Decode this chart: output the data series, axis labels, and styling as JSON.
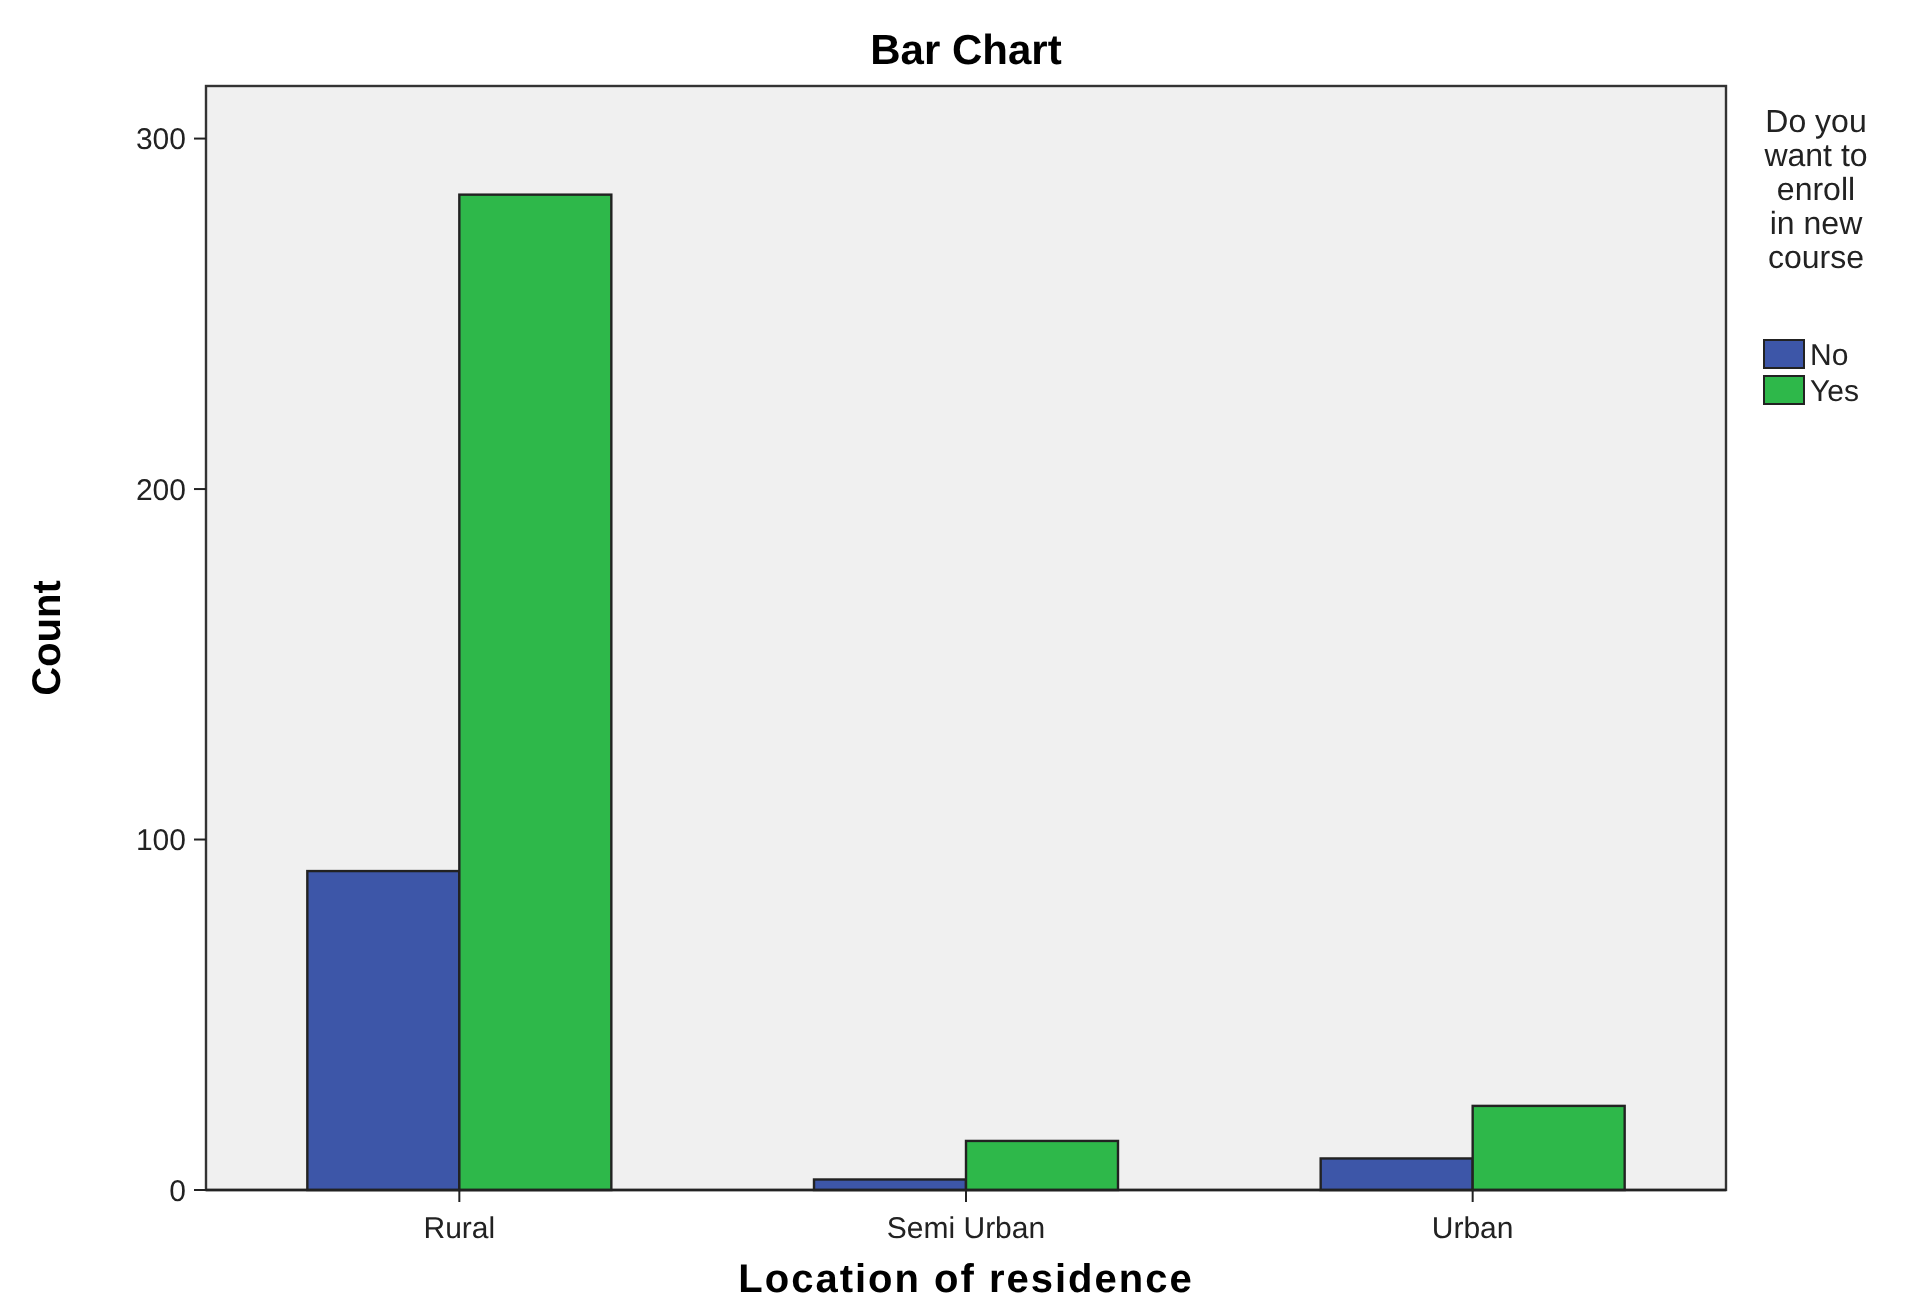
{
  "chart_data": {
    "type": "bar",
    "title": "Bar Chart",
    "xlabel": "Location of residence",
    "ylabel": "Count",
    "legend_title": "Do you want to enroll in new course",
    "categories": [
      "Rural",
      "Semi Urban",
      "Urban"
    ],
    "series": [
      {
        "name": "No",
        "color": "#3d56a8",
        "values": [
          91,
          3,
          9
        ]
      },
      {
        "name": "Yes",
        "color": "#2eb84a",
        "values": [
          284,
          14,
          24
        ]
      }
    ],
    "ylim": [
      0,
      315
    ],
    "yticks": [
      0,
      100,
      200,
      300
    ],
    "grid": false,
    "legend": "right"
  }
}
